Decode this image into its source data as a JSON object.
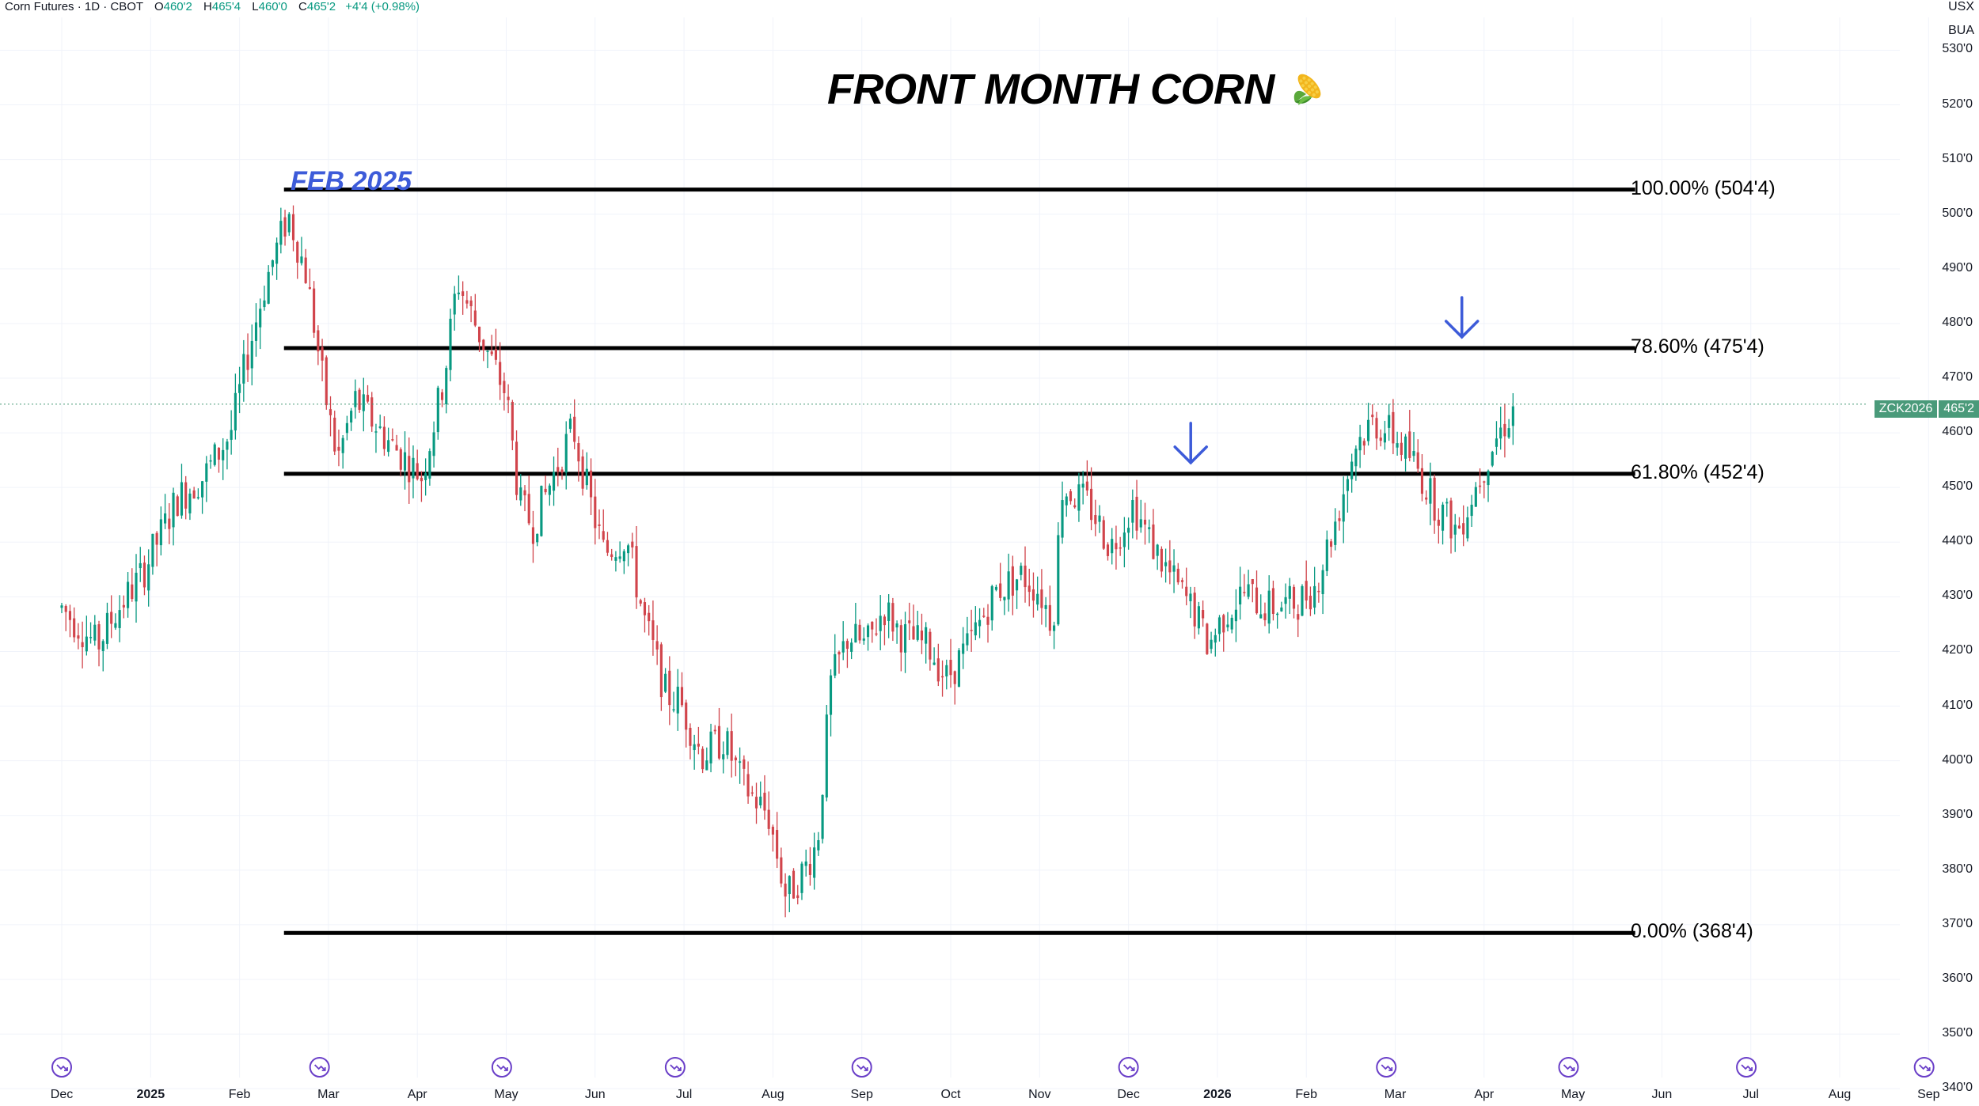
{
  "header": {
    "symbol_text": "Corn Futures · 1D · CBOT",
    "open_label": "O",
    "open": "460'2",
    "high_label": "H",
    "high": "465'4",
    "low_label": "L",
    "low": "460'0",
    "close_label": "C",
    "close": "465'2",
    "change": "+4'4 (+0.98%)"
  },
  "units": {
    "currency": "USX",
    "per": "BUA"
  },
  "symbol_tag": {
    "ticker": "ZCK2026",
    "price": "465'2"
  },
  "colors": {
    "up": "#089981",
    "down": "#d1444b",
    "annotation": "#3d5bd9",
    "fib_line": "#000000",
    "grid": "#f0f3fa"
  },
  "chart_data": {
    "type": "candlestick",
    "title": "FRONT MONTH CORN",
    "title_icon": "corn-emoji-icon",
    "annotation": "FEB 2025",
    "y_range": [
      338,
      536
    ],
    "x_months": [
      {
        "label": "Dec",
        "bold": false,
        "pos": 0
      },
      {
        "label": "2025",
        "bold": true,
        "pos": 1
      },
      {
        "label": "Feb",
        "bold": false,
        "pos": 2
      },
      {
        "label": "Mar",
        "bold": false,
        "pos": 3
      },
      {
        "label": "Apr",
        "bold": false,
        "pos": 4
      },
      {
        "label": "May",
        "bold": false,
        "pos": 5
      },
      {
        "label": "Jun",
        "bold": false,
        "pos": 6
      },
      {
        "label": "Jul",
        "bold": false,
        "pos": 7
      },
      {
        "label": "Aug",
        "bold": false,
        "pos": 8
      },
      {
        "label": "Sep",
        "bold": false,
        "pos": 9
      },
      {
        "label": "Oct",
        "bold": false,
        "pos": 10
      },
      {
        "label": "Nov",
        "bold": false,
        "pos": 11
      },
      {
        "label": "Dec",
        "bold": false,
        "pos": 12
      },
      {
        "label": "2026",
        "bold": true,
        "pos": 13
      },
      {
        "label": "Feb",
        "bold": false,
        "pos": 14
      },
      {
        "label": "Mar",
        "bold": false,
        "pos": 15
      },
      {
        "label": "Apr",
        "bold": false,
        "pos": 16
      },
      {
        "label": "May",
        "bold": false,
        "pos": 17
      },
      {
        "label": "Jun",
        "bold": false,
        "pos": 18
      },
      {
        "label": "Jul",
        "bold": false,
        "pos": 19
      },
      {
        "label": "Aug",
        "bold": false,
        "pos": 20
      },
      {
        "label": "Sep",
        "bold": false,
        "pos": 21
      }
    ],
    "y_ticks": [
      "530'0",
      "520'0",
      "510'0",
      "500'0",
      "490'0",
      "480'0",
      "470'0",
      "460'0",
      "450'0",
      "440'0",
      "430'0",
      "420'0",
      "410'0",
      "400'0",
      "390'0",
      "380'0",
      "370'0",
      "360'0",
      "350'0",
      "340'0"
    ],
    "y_tick_values": [
      530,
      520,
      510,
      500,
      490,
      480,
      470,
      460,
      450,
      440,
      430,
      420,
      410,
      400,
      390,
      380,
      370,
      360,
      350,
      340
    ],
    "fib_levels": [
      {
        "label": "100.00% (504'4)",
        "value": 504.5
      },
      {
        "label": "78.60% (475'4)",
        "value": 475.5
      },
      {
        "label": "61.80% (452'4)",
        "value": 452.5
      },
      {
        "label": "0.00% (368'4)",
        "value": 368.5
      }
    ],
    "fib_span_months": [
      2.5,
      17.7
    ],
    "last_price": 465.25,
    "arrows": [
      {
        "month_pos": 12.7,
        "value": 452.5
      },
      {
        "month_pos": 15.75,
        "value": 475.5
      }
    ],
    "event_marker_months": [
      0,
      2.9,
      4.95,
      6.9,
      9.0,
      12.0,
      14.9,
      16.95,
      18.95,
      20.95
    ],
    "price_anchors": [
      [
        0,
        428
      ],
      [
        0.4,
        421
      ],
      [
        0.6,
        427
      ],
      [
        0.9,
        434
      ],
      [
        1.3,
        448
      ],
      [
        1.6,
        452
      ],
      [
        1.9,
        460
      ],
      [
        2.1,
        475
      ],
      [
        2.3,
        488
      ],
      [
        2.55,
        500
      ],
      [
        2.75,
        489
      ],
      [
        2.95,
        468
      ],
      [
        3.1,
        455
      ],
      [
        3.3,
        466
      ],
      [
        3.7,
        458
      ],
      [
        4.05,
        452
      ],
      [
        4.3,
        470
      ],
      [
        4.45,
        488
      ],
      [
        4.7,
        478
      ],
      [
        5.0,
        467
      ],
      [
        5.15,
        447
      ],
      [
        5.3,
        443
      ],
      [
        5.55,
        453
      ],
      [
        5.75,
        461
      ],
      [
        5.95,
        447
      ],
      [
        6.1,
        438
      ],
      [
        6.35,
        441
      ],
      [
        6.55,
        426
      ],
      [
        6.8,
        412
      ],
      [
        6.95,
        411
      ],
      [
        7.2,
        401
      ],
      [
        7.45,
        404
      ],
      [
        7.65,
        396
      ],
      [
        7.95,
        390
      ],
      [
        8.15,
        375
      ],
      [
        8.35,
        380
      ],
      [
        8.5,
        385
      ],
      [
        8.65,
        414
      ],
      [
        8.85,
        423
      ],
      [
        9.05,
        421
      ],
      [
        9.25,
        428
      ],
      [
        9.45,
        423
      ],
      [
        9.75,
        421
      ],
      [
        9.95,
        415
      ],
      [
        10.2,
        421
      ],
      [
        10.5,
        431
      ],
      [
        10.8,
        434
      ],
      [
        11.0,
        431
      ],
      [
        11.15,
        425
      ],
      [
        11.25,
        450
      ],
      [
        11.55,
        447
      ],
      [
        11.8,
        439
      ],
      [
        12.05,
        447
      ],
      [
        12.25,
        440
      ],
      [
        12.5,
        433
      ],
      [
        12.75,
        427
      ],
      [
        12.9,
        421
      ],
      [
        13.05,
        426
      ],
      [
        13.3,
        431
      ],
      [
        13.55,
        428
      ],
      [
        13.9,
        429
      ],
      [
        14.1,
        432
      ],
      [
        14.35,
        445
      ],
      [
        14.55,
        458
      ],
      [
        14.75,
        462
      ],
      [
        14.95,
        460
      ],
      [
        15.2,
        455
      ],
      [
        15.45,
        447
      ],
      [
        15.7,
        442
      ],
      [
        15.9,
        450
      ],
      [
        16.1,
        458
      ],
      [
        16.35,
        465
      ]
    ]
  }
}
